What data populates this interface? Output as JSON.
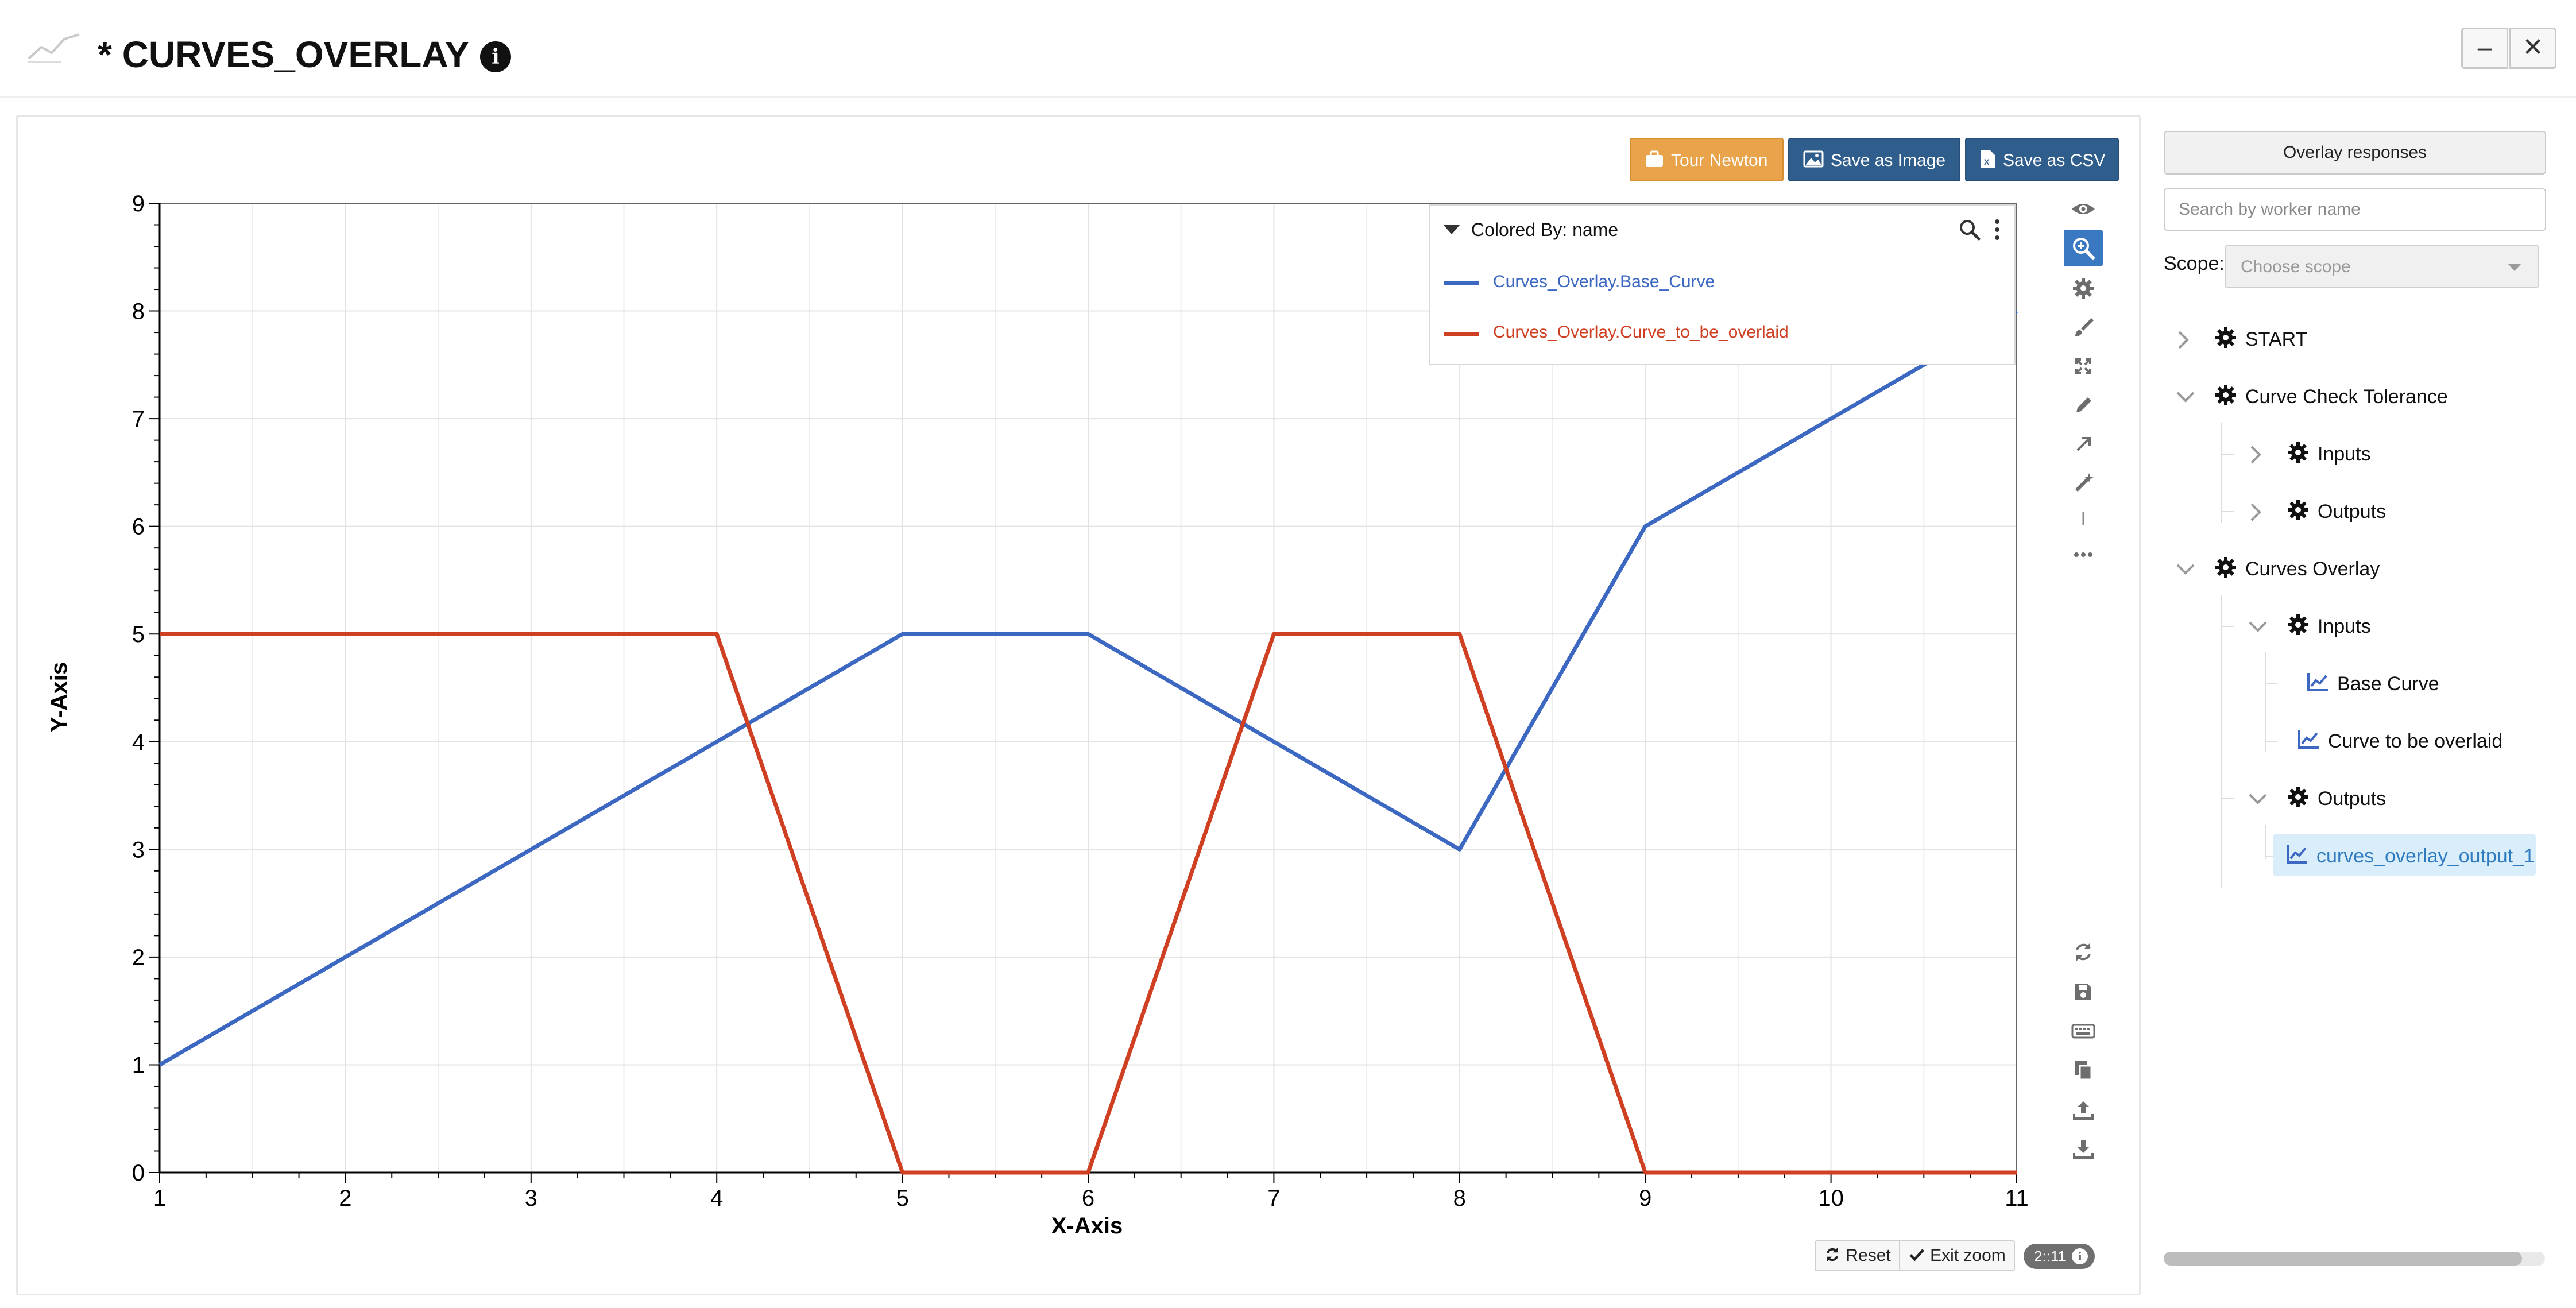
{
  "header": {
    "title": "* CURVES_OVERLAY",
    "info_icon": "info-icon",
    "minimize_label": "–",
    "close_label": "✕"
  },
  "toolbar": {
    "tour_label": "Tour Newton",
    "save_image_label": "Save as Image",
    "save_csv_label": "Save as CSV"
  },
  "legend": {
    "title": "Colored By: name",
    "items": [
      {
        "label": "Curves_Overlay.Base_Curve",
        "color": "#3c68c2"
      },
      {
        "label": "Curves_Overlay.Curve_to_be_overlaid",
        "color": "#cf3f22"
      }
    ]
  },
  "plot_tools": [
    "eye-icon",
    "zoom-in-icon",
    "gear-icon",
    "brush-icon",
    "expand-icon",
    "pencil-icon",
    "arrow-icon",
    "magic-wand-icon",
    "separator-icon",
    "more-icon"
  ],
  "bottom_tools": [
    "refresh-icon",
    "save-icon",
    "keyboard-icon",
    "copy-icon",
    "upload-icon",
    "download-icon"
  ],
  "zoom_controls": {
    "reset_label": "Reset",
    "exit_zoom_label": "Exit zoom",
    "version": "2::11"
  },
  "sidebar": {
    "overlay_button": "Overlay responses",
    "search_placeholder": "Search by worker name",
    "scope_label": "Scope:",
    "scope_placeholder": "Choose scope",
    "tree": [
      {
        "label": "START",
        "icon": "gear-icon",
        "expanded": false
      },
      {
        "label": "Curve Check Tolerance",
        "icon": "gear-icon",
        "expanded": true
      },
      {
        "label": "Inputs",
        "icon": "gear-icon",
        "expanded": false
      },
      {
        "label": "Outputs",
        "icon": "gear-icon",
        "expanded": false
      },
      {
        "label": "Curves Overlay",
        "icon": "gear-icon",
        "expanded": true
      },
      {
        "label": "Inputs",
        "icon": "gear-icon",
        "expanded": true
      },
      {
        "label": "Base Curve",
        "icon": "line-chart-icon"
      },
      {
        "label": "Curve to be overlaid",
        "icon": "line-chart-icon"
      },
      {
        "label": "Outputs",
        "icon": "gear-icon",
        "expanded": true
      },
      {
        "label": "curves_overlay_output_1",
        "icon": "line-chart-icon",
        "selected": true
      }
    ]
  },
  "chart_data": {
    "type": "line",
    "title": "",
    "xlabel": "X-Axis",
    "ylabel": "Y-Axis",
    "xlim": [
      1,
      11
    ],
    "ylim": [
      0,
      9
    ],
    "xticks": [
      1,
      2,
      3,
      4,
      5,
      6,
      7,
      8,
      9,
      10,
      11
    ],
    "yticks": [
      0,
      1,
      2,
      3,
      4,
      5,
      6,
      7,
      8,
      9
    ],
    "grid": true,
    "legend_position": "top-right",
    "series": [
      {
        "name": "Curves_Overlay.Base_Curve",
        "color": "#3c68c2",
        "x": [
          1,
          2,
          3,
          4,
          5,
          6,
          7,
          8,
          9,
          10,
          11
        ],
        "y": [
          1,
          2,
          3,
          4,
          5,
          5,
          4,
          3,
          6,
          7,
          8
        ]
      },
      {
        "name": "Curves_Overlay.Curve_to_be_overlaid",
        "color": "#cf3f22",
        "x": [
          1,
          2,
          3,
          4,
          5,
          6,
          7,
          8,
          9,
          10,
          11
        ],
        "y": [
          5,
          5,
          5,
          5,
          0,
          0,
          5,
          5,
          0,
          0,
          0
        ]
      }
    ]
  }
}
